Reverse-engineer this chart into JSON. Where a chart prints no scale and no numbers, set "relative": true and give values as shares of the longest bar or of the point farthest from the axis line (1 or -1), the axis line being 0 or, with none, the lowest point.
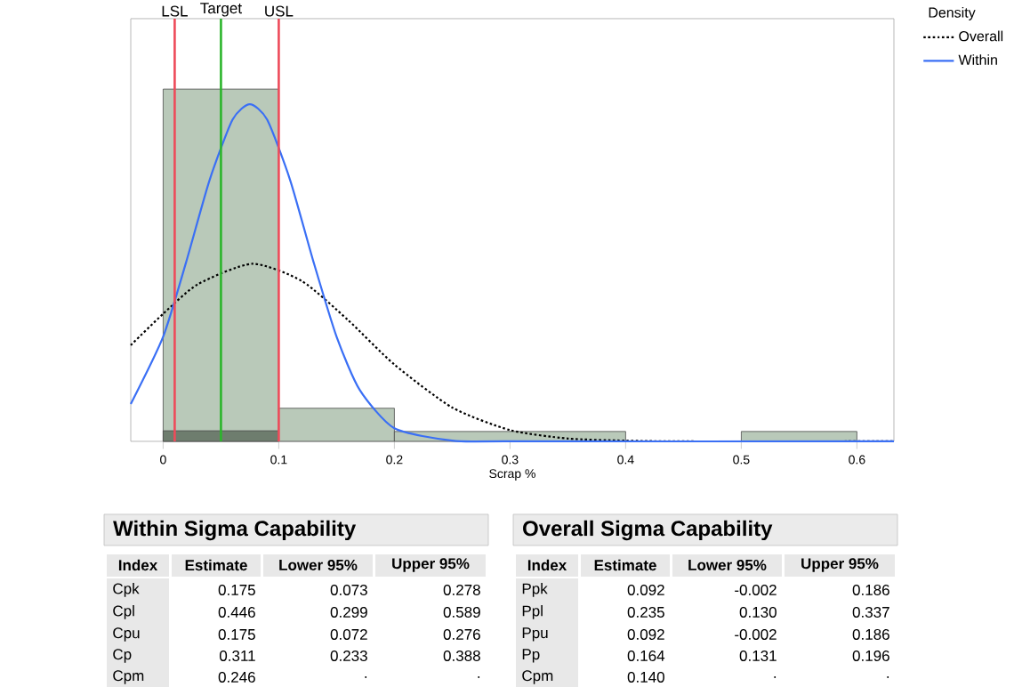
{
  "chart_data": [
    {
      "type": "histogram",
      "xlabel": "Scrap %",
      "legend_title": "Density",
      "relative": true,
      "bins": [
        0,
        0.1,
        0.2,
        0.4,
        0.5,
        0.6
      ],
      "xlim": [
        -0.028,
        0.632
      ],
      "xticks": [
        0,
        0.1,
        0.2,
        0.3,
        0.4,
        0.5,
        0.6
      ],
      "series": [
        {
          "type": "histogram",
          "color": "#b9c9b9",
          "values": [
            1,
            0.094,
            0.028,
            0,
            0.028
          ]
        },
        {
          "type": "histogram",
          "color": "#6e7d6e",
          "values": [
            0.03,
            null,
            null,
            null,
            null
          ]
        },
        {
          "type": "line",
          "name": "Overall",
          "color": "#000000",
          "line_style": "dotted",
          "x": [
            -0.028,
            0,
            0.03,
            0.077,
            0.12,
            0.16,
            0.2,
            0.25,
            0.3,
            0.35,
            0.4,
            0.45,
            0.632
          ],
          "values": [
            0.273,
            0.362,
            0.446,
            0.504,
            0.455,
            0.344,
            0.218,
            0.096,
            0.032,
            0.008,
            0.002,
            0,
            0
          ]
        },
        {
          "type": "line",
          "name": "Within",
          "color": "#3a6ff5",
          "line_style": "solid",
          "x": [
            -0.028,
            0,
            0.02,
            0.04,
            0.06,
            0.075,
            0.09,
            0.11,
            0.13,
            0.15,
            0.17,
            0.2,
            0.25,
            0.3,
            0.632
          ],
          "values": [
            0.106,
            0.297,
            0.51,
            0.74,
            0.913,
            0.957,
            0.913,
            0.74,
            0.51,
            0.297,
            0.146,
            0.037,
            0.002,
            0,
            0
          ]
        }
      ],
      "ref_lines": [
        {
          "axis": "x",
          "value": 0.01,
          "label": "LSL",
          "color": "#ee4b5a"
        },
        {
          "axis": "x",
          "value": 0.05,
          "label": "Target",
          "color": "#2bb52b"
        },
        {
          "axis": "x",
          "value": 0.1,
          "label": "USL",
          "color": "#ee4b5a"
        }
      ],
      "legend": "top right",
      "marker": "none"
    },
    {
      "type": "other",
      "title": "Within Sigma Capability",
      "annotations": [
        "Index",
        "Estimate",
        "Lower 95%",
        "Upper 95%",
        "Cpk",
        "0.175",
        "0.073",
        "0.278",
        "Cpl",
        "0.446",
        "0.299",
        "0.589",
        "Cpu",
        "0.175",
        "0.072",
        "0.276",
        "Cp",
        "0.311",
        "0.233",
        "0.388",
        "Cpm",
        "0.246",
        ".",
        "."
      ]
    },
    {
      "type": "other",
      "title": "Overall Sigma Capability",
      "annotations": [
        "Index",
        "Estimate",
        "Lower 95%",
        "Upper 95%",
        "Ppk",
        "0.092",
        "-0.002",
        "0.186",
        "Ppl",
        "0.235",
        "0.130",
        "0.337",
        "Ppu",
        "0.092",
        "-0.002",
        "0.186",
        "Pp",
        "0.164",
        "0.131",
        "0.196",
        "Cpm",
        "0.140",
        ".",
        "."
      ]
    }
  ]
}
